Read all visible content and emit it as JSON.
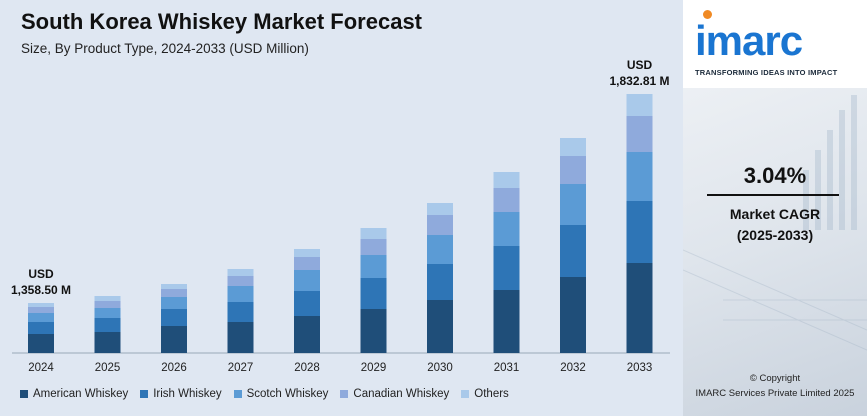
{
  "title": "South Korea Whiskey Market Forecast",
  "subtitle": "Size, By Product Type, 2024-2033 (USD Million)",
  "colors": {
    "american": "#1f4e79",
    "irish": "#2e75b6",
    "scotch": "#5b9bd5",
    "canadian": "#8faadc",
    "others": "#a9c9ea"
  },
  "chart_data": {
    "type": "bar",
    "stacked": true,
    "categories": [
      "2024",
      "2025",
      "2026",
      "2027",
      "2028",
      "2029",
      "2030",
      "2031",
      "2032",
      "2033"
    ],
    "series": [
      {
        "name": "American Whiskey",
        "values": [
          19,
          21,
          27,
          31,
          37,
          44,
          53,
          63,
          76,
          90
        ]
      },
      {
        "name": "Irish Whiskey",
        "values": [
          12,
          14,
          17,
          20,
          25,
          31,
          36,
          44,
          52,
          62
        ]
      },
      {
        "name": "Scotch Whiskey",
        "values": [
          9,
          10,
          12,
          16,
          21,
          23,
          29,
          34,
          41,
          49
        ]
      },
      {
        "name": "Canadian Whiskey",
        "values": [
          6,
          7,
          8,
          10,
          13,
          16,
          20,
          24,
          28,
          36
        ]
      },
      {
        "name": "Others",
        "values": [
          4,
          5,
          5,
          7,
          8,
          11,
          12,
          16,
          18,
          22
        ]
      }
    ],
    "annotations": [
      {
        "category": "2024",
        "line1": "USD",
        "line2": "1,358.50 M"
      },
      {
        "category": "2033",
        "line1": "USD",
        "line2": "1,832.81 M"
      }
    ],
    "legend_position": "bottom",
    "grid": false
  },
  "legend": [
    {
      "label": "American Whiskey",
      "color": "#1f4e79"
    },
    {
      "label": "Irish Whiskey",
      "color": "#2e75b6"
    },
    {
      "label": "Scotch Whiskey",
      "color": "#5b9bd5"
    },
    {
      "label": "Canadian Whiskey",
      "color": "#8faadc"
    },
    {
      "label": "Others",
      "color": "#a9c9ea"
    }
  ],
  "brand": {
    "logo": "imarc",
    "tagline": "TRANSFORMING IDEAS INTO IMPACT"
  },
  "cagr": {
    "value": "3.04%",
    "label": "Market CAGR",
    "period": "(2025-2033)"
  },
  "footer": {
    "copyright": "© Copyright",
    "company": "IMARC Services Private Limited 2025"
  }
}
